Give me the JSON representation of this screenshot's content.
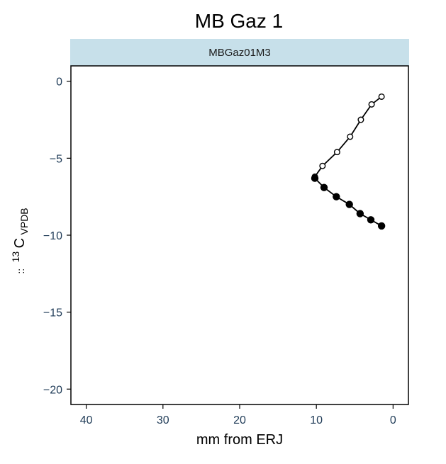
{
  "chart_data": {
    "type": "line",
    "title": "MB Gaz 1",
    "facet_label": "MBGaz01M3",
    "xlabel": "mm from ERJ",
    "ylabel": {
      "prefix": "::",
      "superscript": "13",
      "main": "C",
      "subscript": "VPDB"
    },
    "x_reversed": true,
    "xlim": [
      42,
      -2
    ],
    "ylim": [
      -21,
      1
    ],
    "xticks": [
      40,
      30,
      20,
      10,
      0
    ],
    "yticks": [
      0,
      -5,
      -10,
      -15,
      -20
    ],
    "xtick_labels": [
      "40",
      "30",
      "20",
      "10",
      "0"
    ],
    "ytick_labels": [
      "0",
      "−5",
      "−10",
      "−15",
      "−20"
    ],
    "grid": false,
    "series": [
      {
        "marker": "open-circle",
        "points": [
          {
            "x": 1.5,
            "y": -1.0
          },
          {
            "x": 2.8,
            "y": -1.5
          },
          {
            "x": 4.2,
            "y": -2.5
          },
          {
            "x": 5.6,
            "y": -3.6
          },
          {
            "x": 7.3,
            "y": -4.6
          },
          {
            "x": 9.2,
            "y": -5.5
          },
          {
            "x": 10.2,
            "y": -6.2
          }
        ]
      },
      {
        "marker": "filled-circle",
        "points": [
          {
            "x": 10.2,
            "y": -6.3
          },
          {
            "x": 9.0,
            "y": -6.9
          },
          {
            "x": 7.4,
            "y": -7.5
          },
          {
            "x": 5.7,
            "y": -8.0
          },
          {
            "x": 4.3,
            "y": -8.6
          },
          {
            "x": 2.9,
            "y": -9.0
          },
          {
            "x": 1.5,
            "y": -9.4
          }
        ]
      }
    ],
    "colors": {
      "strip_fill": "#c7e0ea",
      "line": "#000000",
      "tick_text": "#1f3b57"
    }
  }
}
